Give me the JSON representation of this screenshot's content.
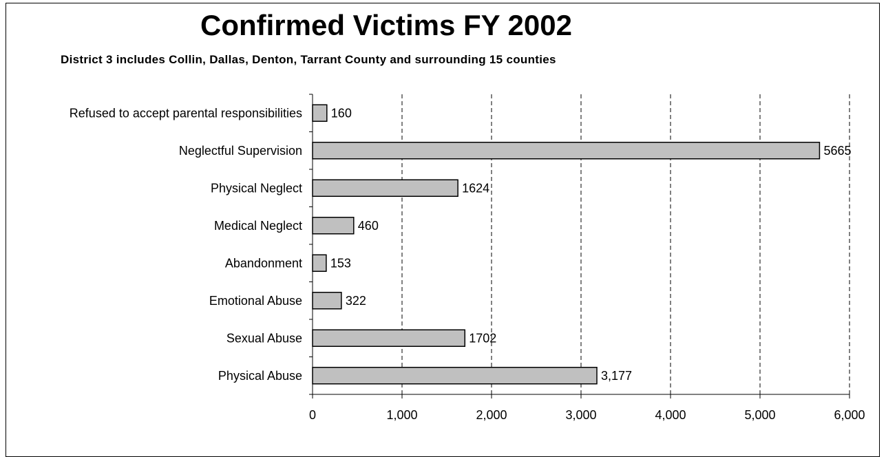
{
  "chart_data": {
    "type": "bar",
    "orientation": "horizontal",
    "title": "Confirmed Victims FY 2002",
    "subtitle": "District 3 includes Collin, Dallas, Denton, Tarrant County and surrounding 15 counties",
    "categories": [
      "Refused to accept parental responsibilities",
      "Neglectful Supervision",
      "Physical Neglect",
      "Medical Neglect",
      "Abandonment",
      "Emotional Abuse",
      "Sexual Abuse",
      "Physical Abuse"
    ],
    "values": [
      160,
      5665,
      1624,
      460,
      153,
      322,
      1702,
      3177
    ],
    "value_labels": [
      "160",
      "5665",
      "1624",
      "460",
      "153",
      "322",
      "1702",
      "3,177"
    ],
    "xlim": [
      0,
      6000
    ],
    "xticks": [
      0,
      1000,
      2000,
      3000,
      4000,
      5000,
      6000
    ],
    "xtick_labels": [
      "0",
      "1,000",
      "2,000",
      "3,000",
      "4,000",
      "5,000",
      "6,000"
    ],
    "grid": "vertical-dashed",
    "legend": "none",
    "bar_color": "#c0c0c0",
    "bar_edge_color": "#000000"
  }
}
